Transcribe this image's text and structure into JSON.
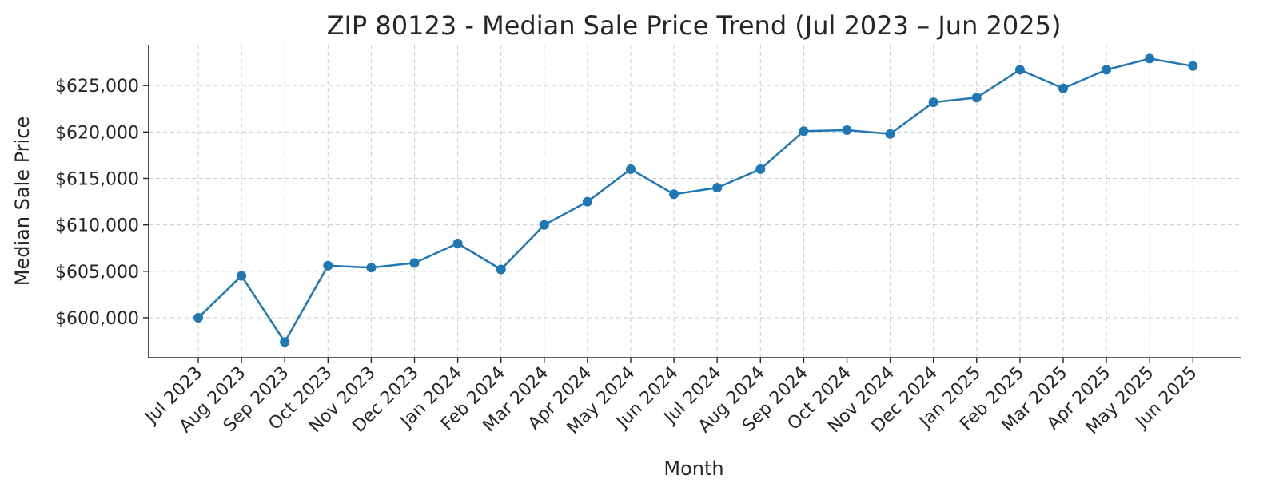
{
  "chart_data": {
    "type": "line",
    "title": "ZIP 80123 - Median Sale Price Trend (Jul 2023 – Jun 2025)",
    "xlabel": "Month",
    "ylabel": "Median Sale Price",
    "categories": [
      "Jul 2023",
      "Aug 2023",
      "Sep 2023",
      "Oct 2023",
      "Nov 2023",
      "Dec 2023",
      "Jan 2024",
      "Feb 2024",
      "Mar 2024",
      "Apr 2024",
      "May 2024",
      "Jun 2024",
      "Jul 2024",
      "Aug 2024",
      "Sep 2024",
      "Oct 2024",
      "Nov 2024",
      "Dec 2024",
      "Jan 2025",
      "Feb 2025",
      "Mar 2025",
      "Apr 2025",
      "May 2025",
      "Jun 2025"
    ],
    "series": [
      {
        "values": [
          600000,
          604500,
          597400,
          605600,
          605400,
          605900,
          608000,
          605200,
          610000,
          612500,
          616000,
          613300,
          614000,
          616000,
          620100,
          620200,
          619800,
          623200,
          623700,
          626700,
          624700,
          626700,
          627900,
          627100
        ],
        "color": "#1f77b4"
      }
    ],
    "y_ticks": [
      600000,
      605000,
      610000,
      615000,
      620000,
      625000
    ],
    "y_tick_labels": [
      "$600,000",
      "$605,000",
      "$610,000",
      "$615,000",
      "$620,000",
      "$625,000"
    ],
    "ylim": [
      595700,
      629400
    ],
    "grid": true,
    "marker": "circle",
    "legend": "none"
  }
}
